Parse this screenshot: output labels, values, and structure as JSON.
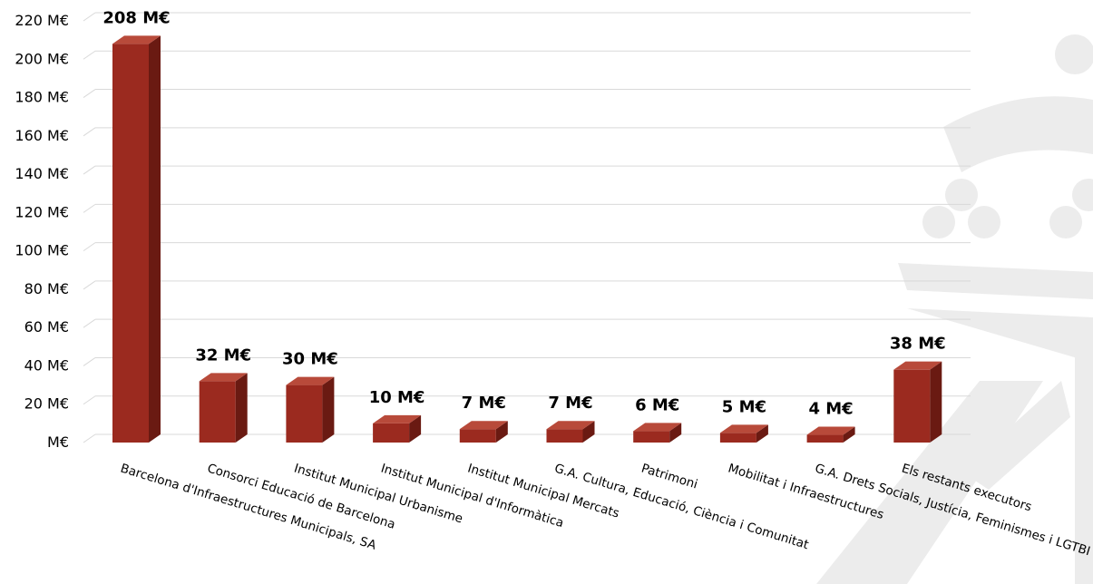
{
  "colors": {
    "bar_front": "#9b2a1f",
    "bar_side": "#6a1a12",
    "bar_top": "#b84a3a",
    "grid": "#d9d9d9",
    "watermark": "#ececec"
  },
  "watermark_icon": "coat-of-arms-watermark-icon",
  "chart_data": {
    "type": "bar",
    "title": "",
    "xlabel": "",
    "ylabel": "",
    "ylim": [
      0,
      220
    ],
    "y_ticks": [
      0,
      20,
      40,
      60,
      80,
      100,
      120,
      140,
      160,
      180,
      200,
      220
    ],
    "y_tick_labels": [
      "M€",
      "20 M€",
      "40 M€",
      "60 M€",
      "80 M€",
      "100 M€",
      "120 M€",
      "140 M€",
      "160 M€",
      "180 M€",
      "200 M€",
      "220 M€"
    ],
    "grid": true,
    "legend": "none",
    "categories": [
      "Barcelona d'Infraestructures Municipals, SA",
      "Consorci Educació de Barcelona",
      "Institut Municipal Urbanisme",
      "Institut Municipal d'Informàtica",
      "Institut Municipal Mercats",
      "G.A. Cultura, Educació, Ciència i Comunitat",
      "Patrimoni",
      "Mobilitat i Infraestructures",
      "G.A. Drets Socials, Justícia, Feminismes i LGTBI",
      "Els restants executors"
    ],
    "values": [
      208,
      32,
      30,
      10,
      7,
      7,
      6,
      5,
      4,
      38
    ],
    "value_labels": [
      "208 M€",
      "32 M€",
      "30 M€",
      "10 M€",
      "7 M€",
      "7 M€",
      "6 M€",
      "5 M€",
      "4 M€",
      "38 M€"
    ]
  }
}
